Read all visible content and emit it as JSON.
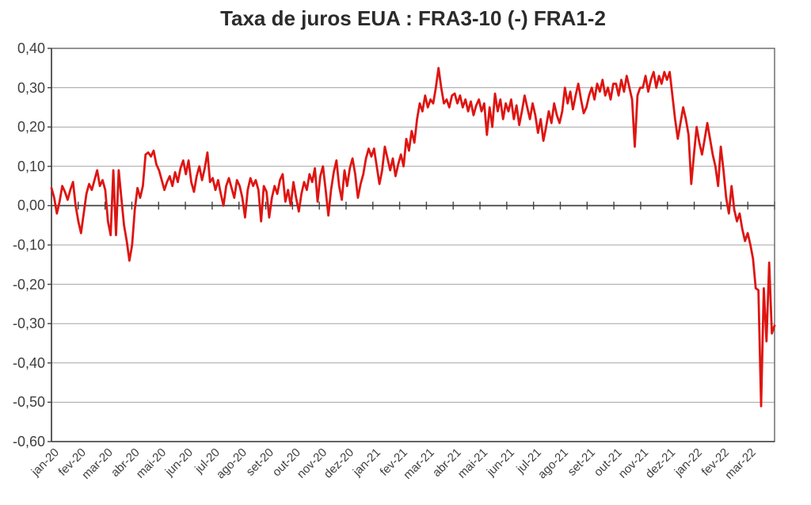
{
  "title": "Taxa de juros EUA : FRA3-10 (-) FRA1-2",
  "colors": {
    "line": "#de1512",
    "gridline": "#a3a3a3",
    "border": "#595959",
    "zero_axis": "#404040",
    "tick": "#404040",
    "label_text": "#3f3f3f",
    "title_text": "#2b2b2b",
    "background": "#ffffff"
  },
  "chart_data": {
    "type": "line",
    "title": "Taxa de juros EUA : FRA3-10 (-) FRA1-2",
    "xlabel": "",
    "ylabel": "",
    "legend": "none",
    "grid": "horizontal",
    "ylim": [
      -0.6,
      0.4
    ],
    "y_step": 0.1,
    "y_tick_labels": [
      "0,40",
      "0,30",
      "0,20",
      "0,10",
      "0,00",
      "-0,10",
      "-0,20",
      "-0,30",
      "-0,40",
      "-0,50",
      "-0,60"
    ],
    "x_tick_labels": [
      "jan-20",
      "fev-20",
      "mar-20",
      "abr-20",
      "mai-20",
      "jun-20",
      "jul-20",
      "ago-20",
      "set-20",
      "out-20",
      "nov-20",
      "dez-20",
      "jan-21",
      "fev-21",
      "mar-21",
      "abr-21",
      "mai-21",
      "jun-21",
      "jul-21",
      "ago-21",
      "set-21",
      "out-21",
      "nov-21",
      "dez-21",
      "jan-22",
      "fev-22",
      "mar-22"
    ],
    "series": [
      {
        "name": "FRA3-10 (-) FRA1-2",
        "color": "#de1512",
        "samples_per_month": 10,
        "values": [
          0.045,
          0.02,
          -0.02,
          0.01,
          0.05,
          0.035,
          0.015,
          0.04,
          0.06,
          0.0,
          -0.04,
          -0.07,
          -0.02,
          0.03,
          0.055,
          0.04,
          0.065,
          0.09,
          0.05,
          0.065,
          0.04,
          -0.04,
          -0.075,
          0.09,
          -0.075,
          0.09,
          0.02,
          -0.05,
          -0.09,
          -0.14,
          -0.1,
          -0.01,
          0.045,
          0.02,
          0.05,
          0.13,
          0.135,
          0.125,
          0.14,
          0.105,
          0.09,
          0.065,
          0.04,
          0.06,
          0.075,
          0.05,
          0.085,
          0.06,
          0.095,
          0.115,
          0.08,
          0.115,
          0.06,
          0.035,
          0.075,
          0.1,
          0.065,
          0.095,
          0.135,
          0.06,
          0.07,
          0.04,
          0.065,
          0.03,
          0.0,
          0.05,
          0.07,
          0.045,
          0.02,
          0.065,
          0.05,
          0.02,
          -0.03,
          0.04,
          0.07,
          0.05,
          0.065,
          0.04,
          -0.04,
          0.05,
          0.035,
          -0.03,
          0.02,
          0.05,
          0.03,
          0.065,
          0.08,
          0.01,
          0.04,
          0.0,
          0.06,
          0.02,
          -0.015,
          0.03,
          0.06,
          0.04,
          0.08,
          0.06,
          0.095,
          0.01,
          0.075,
          0.1,
          0.04,
          -0.025,
          0.04,
          0.085,
          0.115,
          0.05,
          0.015,
          0.09,
          0.05,
          0.095,
          0.12,
          0.08,
          0.02,
          0.055,
          0.08,
          0.12,
          0.145,
          0.125,
          0.145,
          0.1,
          0.055,
          0.09,
          0.15,
          0.12,
          0.09,
          0.12,
          0.075,
          0.105,
          0.13,
          0.1,
          0.17,
          0.14,
          0.19,
          0.16,
          0.22,
          0.26,
          0.24,
          0.28,
          0.25,
          0.27,
          0.26,
          0.3,
          0.35,
          0.3,
          0.26,
          0.27,
          0.25,
          0.28,
          0.285,
          0.26,
          0.28,
          0.25,
          0.27,
          0.24,
          0.265,
          0.23,
          0.255,
          0.27,
          0.24,
          0.26,
          0.18,
          0.25,
          0.2,
          0.285,
          0.24,
          0.27,
          0.22,
          0.26,
          0.24,
          0.27,
          0.22,
          0.255,
          0.205,
          0.24,
          0.28,
          0.25,
          0.22,
          0.26,
          0.23,
          0.185,
          0.22,
          0.165,
          0.2,
          0.24,
          0.21,
          0.26,
          0.23,
          0.21,
          0.24,
          0.3,
          0.26,
          0.29,
          0.245,
          0.28,
          0.31,
          0.27,
          0.235,
          0.25,
          0.28,
          0.3,
          0.27,
          0.31,
          0.29,
          0.32,
          0.28,
          0.3,
          0.27,
          0.31,
          0.31,
          0.28,
          0.32,
          0.29,
          0.33,
          0.3,
          0.27,
          0.15,
          0.28,
          0.3,
          0.3,
          0.33,
          0.29,
          0.32,
          0.34,
          0.3,
          0.33,
          0.31,
          0.34,
          0.32,
          0.34,
          0.28,
          0.22,
          0.17,
          0.21,
          0.25,
          0.22,
          0.18,
          0.055,
          0.13,
          0.2,
          0.16,
          0.13,
          0.17,
          0.21,
          0.17,
          0.13,
          0.1,
          0.05,
          0.15,
          0.09,
          0.02,
          -0.02,
          0.05,
          -0.01,
          -0.04,
          -0.02,
          -0.06,
          -0.09,
          -0.07,
          -0.1,
          -0.135,
          -0.21,
          -0.215,
          -0.51,
          -0.21,
          -0.345,
          -0.145,
          -0.325,
          -0.305
        ]
      }
    ]
  }
}
